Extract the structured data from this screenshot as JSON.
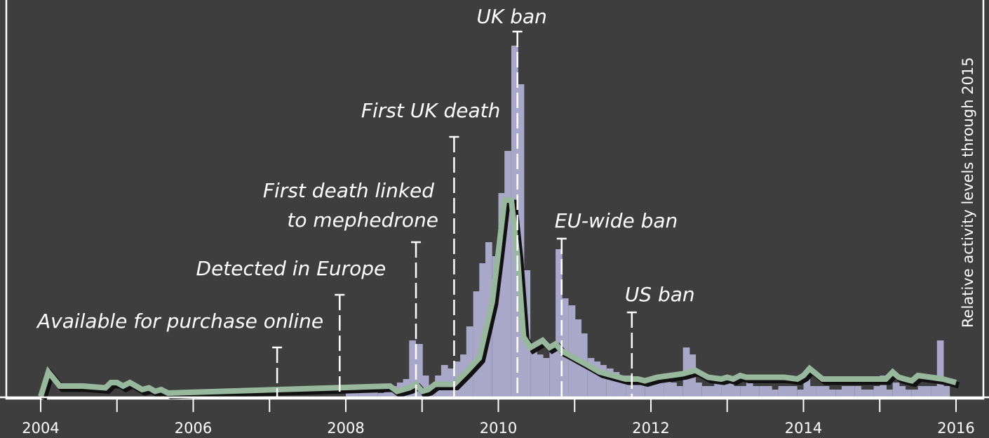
{
  "chart_data": {
    "type": "bar",
    "ylabel": "Relative activity levels through 2015",
    "xlim": [
      2004,
      2016
    ],
    "ylim": [
      0,
      100
    ],
    "colors": {
      "background": "#3e3e3e",
      "bars": "#a9a8c8",
      "line": "#98b89e",
      "line_shadow": "#111111",
      "axis": "#ffffff"
    },
    "x_ticks": [
      2004,
      2006,
      2008,
      2010,
      2012,
      2014,
      2016
    ],
    "bar_series": {
      "x": [
        2008.0,
        2008.08,
        2008.17,
        2008.25,
        2008.33,
        2008.42,
        2008.5,
        2008.58,
        2008.67,
        2008.75,
        2008.83,
        2008.92,
        2009.0,
        2009.08,
        2009.17,
        2009.25,
        2009.33,
        2009.42,
        2009.5,
        2009.58,
        2009.67,
        2009.75,
        2009.83,
        2009.92,
        2010.0,
        2010.08,
        2010.17,
        2010.25,
        2010.33,
        2010.42,
        2010.5,
        2010.58,
        2010.67,
        2010.75,
        2010.83,
        2010.92,
        2011.0,
        2011.08,
        2011.17,
        2011.25,
        2011.33,
        2011.42,
        2011.5,
        2011.58,
        2011.67,
        2011.75,
        2011.83,
        2011.92,
        2012.0,
        2012.08,
        2012.17,
        2012.25,
        2012.33,
        2012.42,
        2012.5,
        2012.58,
        2012.67,
        2012.75,
        2012.83,
        2012.92,
        2013.0,
        2013.08,
        2013.17,
        2013.25,
        2013.33,
        2013.42,
        2013.5,
        2013.58,
        2013.67,
        2013.75,
        2013.83,
        2013.92,
        2014.0,
        2014.08,
        2014.17,
        2014.25,
        2014.33,
        2014.42,
        2014.5,
        2014.58,
        2014.67,
        2014.75,
        2014.83,
        2014.92,
        2015.0,
        2015.08,
        2015.17,
        2015.25,
        2015.33,
        2015.42,
        2015.5,
        2015.58,
        2015.67,
        2015.75,
        2015.83
      ],
      "values": [
        1,
        1,
        2,
        2,
        2,
        1,
        3,
        3,
        4,
        5,
        16,
        15,
        6,
        3,
        6,
        9,
        8,
        10,
        12,
        20,
        30,
        38,
        44,
        40,
        58,
        70,
        100,
        89,
        36,
        14,
        12,
        11,
        14,
        42,
        28,
        26,
        22,
        18,
        11,
        10,
        9,
        8,
        7,
        6,
        6,
        5,
        5,
        4,
        5,
        6,
        5,
        4,
        3,
        14,
        12,
        4,
        3,
        3,
        5,
        4,
        4,
        3,
        3,
        4,
        3,
        3,
        3,
        2,
        3,
        3,
        3,
        2,
        5,
        3,
        3,
        3,
        2,
        2,
        3,
        3,
        3,
        2,
        2,
        3,
        6,
        2,
        4,
        3,
        2,
        2,
        3,
        3,
        3,
        16,
        3
      ]
    },
    "line_series": {
      "x": [
        2004.0,
        2004.1,
        2004.25,
        2004.55,
        2004.85,
        2004.92,
        2005.0,
        2005.08,
        2005.17,
        2005.25,
        2005.33,
        2005.42,
        2005.5,
        2005.58,
        2005.67,
        2008.58,
        2008.67,
        2008.75,
        2008.83,
        2008.92,
        2009.0,
        2009.08,
        2009.17,
        2009.25,
        2009.42,
        2009.58,
        2009.75,
        2009.92,
        2010.0,
        2010.08,
        2010.17,
        2010.25,
        2010.33,
        2010.42,
        2010.5,
        2010.58,
        2010.67,
        2010.75,
        2010.83,
        2010.92,
        2011.0,
        2011.17,
        2011.33,
        2011.5,
        2011.67,
        2011.83,
        2011.92,
        2012.08,
        2012.25,
        2012.42,
        2012.5,
        2012.58,
        2012.75,
        2012.92,
        2013.0,
        2013.08,
        2013.17,
        2013.25,
        2013.42,
        2013.58,
        2013.75,
        2013.92,
        2014.0,
        2014.08,
        2014.25,
        2014.5,
        2014.75,
        2014.92,
        2015.0,
        2015.08,
        2015.17,
        2015.25,
        2015.33,
        2015.42,
        2015.5,
        2015.67,
        2015.83,
        2016.0
      ],
      "values": [
        0,
        7,
        3,
        3,
        2.5,
        4,
        4,
        3,
        4,
        3,
        2,
        2.5,
        1.5,
        2,
        1,
        3,
        1.5,
        2,
        2.5,
        3.5,
        1.5,
        2,
        3.5,
        3.5,
        3.5,
        7,
        11,
        27,
        41,
        56,
        56,
        40,
        17,
        14,
        15,
        16,
        14,
        15,
        13,
        12,
        11,
        9,
        7,
        6,
        5,
        5,
        4.5,
        5.5,
        6,
        6.5,
        7,
        7.5,
        5.5,
        5,
        5.5,
        5,
        6,
        5.5,
        5.5,
        5.5,
        5.5,
        5,
        6,
        8,
        5,
        5,
        5,
        5,
        5,
        5,
        7,
        5.5,
        5,
        4.5,
        6,
        5.5,
        5,
        4
      ]
    },
    "annotations": [
      {
        "label": "Available for purchase online",
        "x": 2007.1,
        "line_top": 14
      },
      {
        "label": "Detected in Europe",
        "x": 2007.92,
        "line_top": 29
      },
      {
        "label": "First death linked",
        "label_line2": "to mephedrone",
        "x": 2008.92,
        "line_top": 44
      },
      {
        "label": "First UK death",
        "x": 2009.42,
        "line_top": 74
      },
      {
        "label": "UK ban",
        "x": 2010.25,
        "line_top": 104
      },
      {
        "label": "EU-wide ban",
        "x": 2010.83,
        "line_top": 45
      },
      {
        "label": "US ban",
        "x": 2011.75,
        "line_top": 24
      }
    ]
  }
}
